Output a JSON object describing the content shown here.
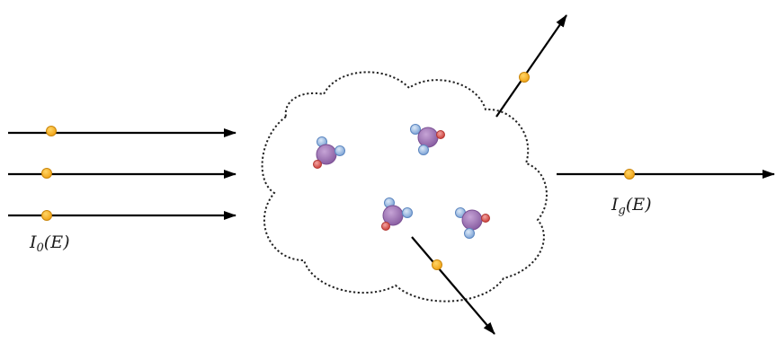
{
  "labels": {
    "incident": {
      "symbol": "I",
      "subscript": "0",
      "argument": "(E)"
    },
    "transmitted": {
      "symbol": "I",
      "subscript": "g",
      "argument": "(E)"
    }
  },
  "colors": {
    "photon": "#f2a81d",
    "photon_outline": "#c9860c",
    "arrow": "#000000",
    "cloud_outline": "#222222",
    "molecule_center": "#9b72b0",
    "hydrogen": "#8fb3de",
    "oxygen": "#d9534f"
  },
  "icons": {
    "molecule": "water-molecule-icon",
    "photon": "photon-dot-icon",
    "cloud": "gas-cloud-icon"
  }
}
